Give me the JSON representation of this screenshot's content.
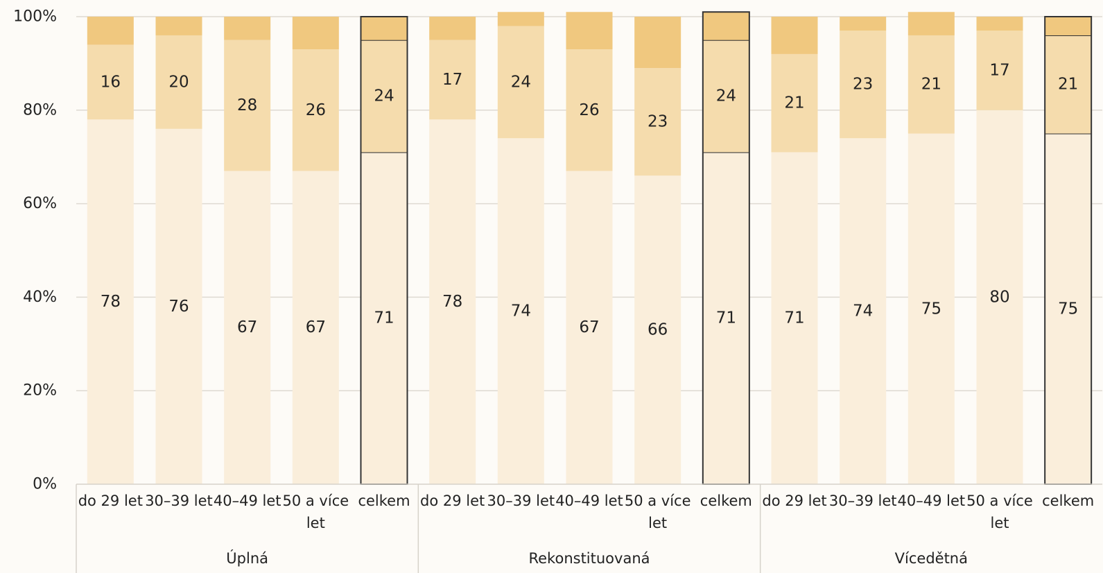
{
  "chart_data": {
    "type": "bar",
    "stacked": true,
    "percent": true,
    "ylim": [
      0,
      100
    ],
    "y_ticks": [
      "0%",
      "20%",
      "40%",
      "60%",
      "80%",
      "100%"
    ],
    "grid": true,
    "legend": "none",
    "colors": [
      "#faeedb",
      "#f5dcad",
      "#f0c87f"
    ],
    "groups": [
      {
        "name": "Úplná",
        "categories": [
          "do 29 let",
          "30–39 let",
          "40–49 let",
          "50 a více let",
          "celkem"
        ],
        "series": [
          {
            "values": [
              78,
              76,
              67,
              67,
              71
            ]
          },
          {
            "values": [
              16,
              20,
              28,
              26,
              24
            ]
          },
          {
            "values": [
              6,
              4,
              5,
              7,
              5
            ]
          }
        ],
        "highlight": [
          false,
          false,
          false,
          false,
          true
        ]
      },
      {
        "name": "Rekonstituovaná",
        "categories": [
          "do 29 let",
          "30–39 let",
          "40–49 let",
          "50 a více let",
          "celkem"
        ],
        "series": [
          {
            "values": [
              78,
              74,
              67,
              66,
              71
            ]
          },
          {
            "values": [
              17,
              24,
              26,
              23,
              24
            ]
          },
          {
            "values": [
              5,
              3,
              8,
              11,
              6
            ]
          }
        ],
        "highlight": [
          false,
          false,
          false,
          false,
          true
        ]
      },
      {
        "name": "Vícedětná",
        "categories": [
          "do 29 let",
          "30–39 let",
          "40–49 let",
          "50 a více let",
          "celkem"
        ],
        "series": [
          {
            "values": [
              71,
              74,
              75,
              80,
              75
            ]
          },
          {
            "values": [
              21,
              23,
              21,
              17,
              21
            ]
          },
          {
            "values": [
              8,
              3,
              5,
              3,
              4
            ]
          }
        ],
        "highlight": [
          false,
          false,
          false,
          false,
          true
        ]
      }
    ],
    "label_series": [
      0,
      1
    ]
  }
}
